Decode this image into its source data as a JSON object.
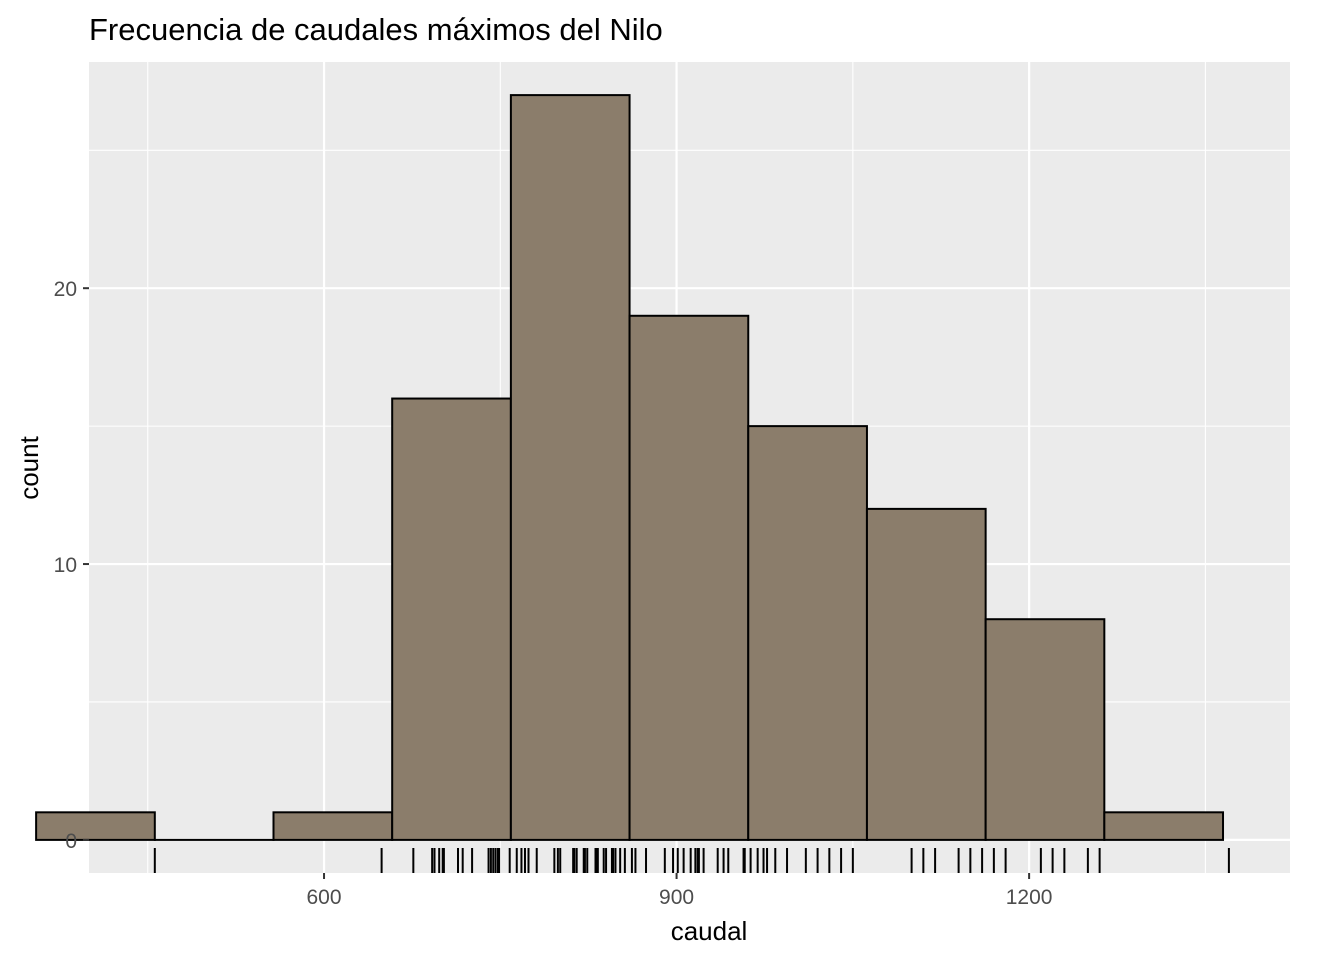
{
  "chart_data": {
    "type": "bar",
    "subtype": "histogram-with-rug",
    "title": "Frecuencia de caudales máximos del Nilo",
    "xlabel": "caudal",
    "ylabel": "count",
    "xlim": [
      400,
      1422
    ],
    "ylim": [
      -1.2,
      28.2
    ],
    "x_ticks": [
      600,
      900,
      1200
    ],
    "y_ticks": [
      0,
      10,
      20
    ],
    "grid": true,
    "bin_width": 101,
    "bins": [
      {
        "start": 355,
        "end": 456,
        "count": 1
      },
      {
        "start": 456,
        "end": 557,
        "count": 0
      },
      {
        "start": 557,
        "end": 658,
        "count": 1
      },
      {
        "start": 658,
        "end": 759,
        "count": 16
      },
      {
        "start": 759,
        "end": 860,
        "count": 27
      },
      {
        "start": 860,
        "end": 961,
        "count": 19
      },
      {
        "start": 961,
        "end": 1062,
        "count": 15
      },
      {
        "start": 1062,
        "end": 1163,
        "count": 12
      },
      {
        "start": 1163,
        "end": 1264,
        "count": 8
      },
      {
        "start": 1264,
        "end": 1365,
        "count": 1
      }
    ],
    "rug": [
      456,
      649,
      676,
      692,
      694,
      698,
      701,
      702,
      714,
      718,
      726,
      740,
      742,
      744,
      746,
      748,
      749,
      758,
      764,
      768,
      771,
      774,
      781,
      796,
      799,
      801,
      812,
      813,
      815,
      821,
      822,
      824,
      831,
      832,
      833,
      838,
      840,
      845,
      846,
      848,
      852,
      856,
      862,
      865,
      874,
      890,
      897,
      901,
      906,
      912,
      916,
      918,
      919,
      923,
      935,
      940,
      944,
      957,
      958,
      963,
      969,
      974,
      977,
      984,
      994,
      1010,
      1020,
      1030,
      1040,
      1050,
      1100,
      1110,
      1120,
      1140,
      1150,
      1160,
      1170,
      1180,
      1210,
      1220,
      1230,
      1250,
      1260,
      1370
    ],
    "colors": {
      "panel_background": "#ebebeb",
      "grid_major": "#ffffff",
      "bar_fill": "#8b7d6b",
      "bar_outline": "#000000",
      "rug": "#000000"
    }
  }
}
